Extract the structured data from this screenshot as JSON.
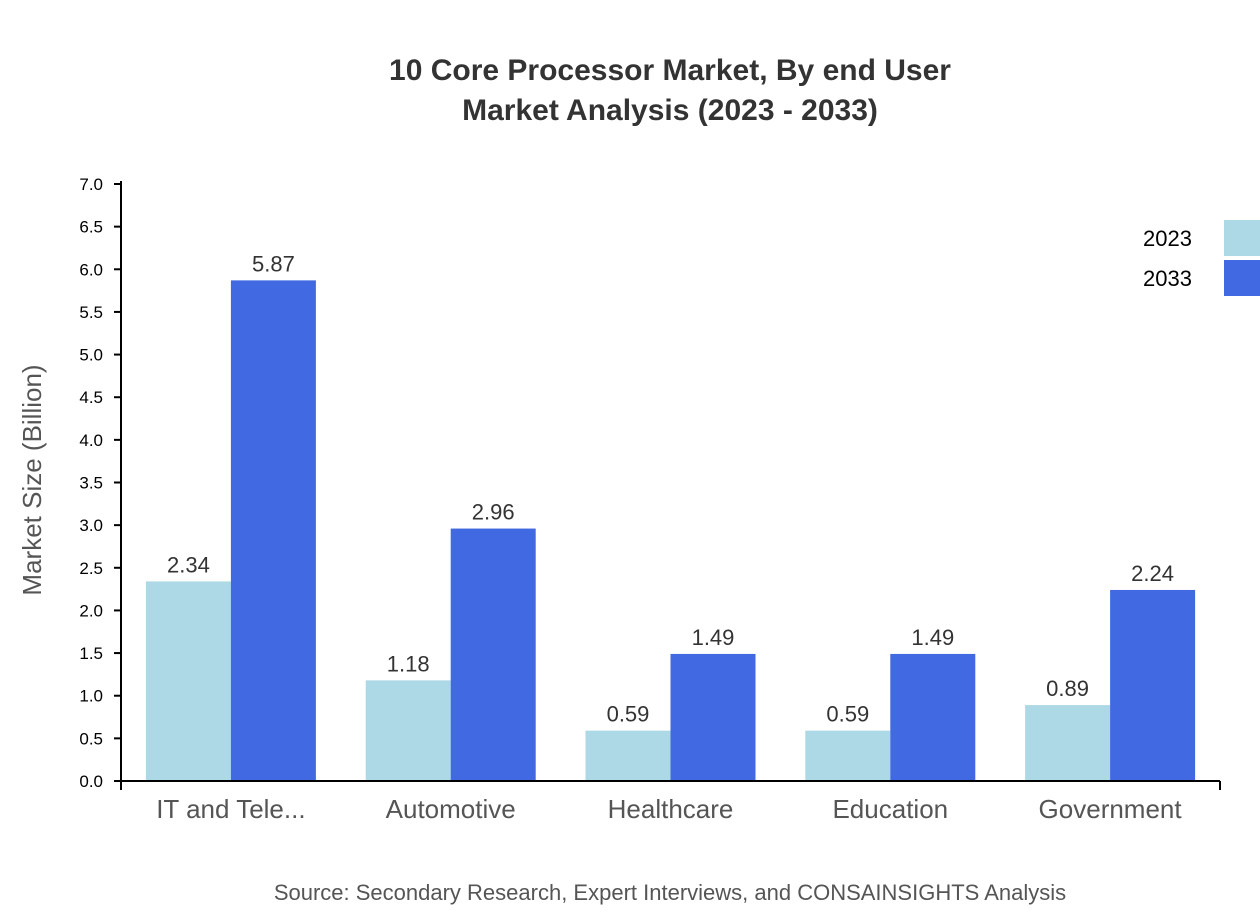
{
  "chart_data": {
    "type": "bar",
    "title": [
      "10 Core Processor Market, By end User",
      "Market Analysis (2023 - 2033)"
    ],
    "xlabel": "",
    "ylabel": "Market Size (Billion)",
    "ylim": [
      0,
      7.0
    ],
    "yticks": [
      "0.0",
      "0.5",
      "1.0",
      "1.5",
      "2.0",
      "2.5",
      "3.0",
      "3.5",
      "4.0",
      "4.5",
      "5.0",
      "5.5",
      "6.0",
      "6.5",
      "7.0"
    ],
    "categories": [
      "IT and Tele...",
      "Automotive",
      "Healthcare",
      "Education",
      "Government"
    ],
    "series": [
      {
        "name": "2023",
        "color": "#add8e6",
        "values": [
          2.34,
          1.18,
          0.59,
          0.59,
          0.89
        ]
      },
      {
        "name": "2033",
        "color": "#4169e1",
        "values": [
          5.87,
          2.96,
          1.49,
          1.49,
          2.24
        ]
      }
    ],
    "grid": false,
    "legend": "top-right",
    "source": "Source: Secondary Research, Expert Interviews, and CONSAINSIGHTS Analysis"
  }
}
